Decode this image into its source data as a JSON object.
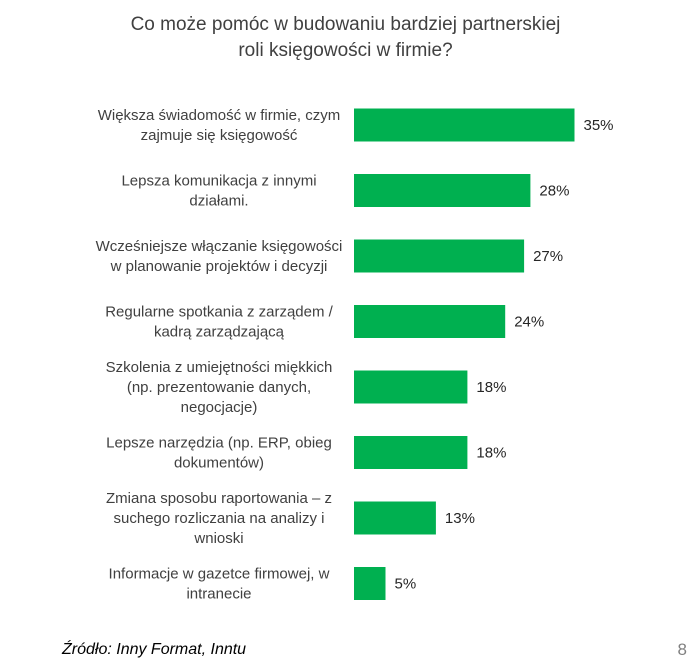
{
  "chart_data": {
    "type": "bar",
    "orientation": "horizontal",
    "title_lines": [
      "Co może pomóc w budowaniu bardziej partnerskiej",
      "roli księgowości w firmie?"
    ],
    "categories": [
      [
        "Większa świadomość w firmie, czym",
        "zajmuje się księgowość"
      ],
      [
        "Lepsza komunikacja z innymi",
        "działami."
      ],
      [
        "Wcześniejsze włączanie księgowości",
        "w planowanie projektów i decyzji"
      ],
      [
        "Regularne spotkania z zarządem /",
        "kadrą zarządzającą"
      ],
      [
        "Szkolenia z umiejętności miękkich",
        "(np. prezentowanie danych,",
        "negocjacje)"
      ],
      [
        "Lepsze narzędzia (np. ERP, obieg",
        "dokumentów)"
      ],
      [
        "Zmiana sposobu raportowania – z",
        "suchego rozliczania na analizy i",
        "wnioski"
      ],
      [
        "Informacje w gazetce firmowej, w",
        "intranecie"
      ]
    ],
    "values": [
      35,
      28,
      27,
      24,
      18,
      18,
      13,
      5
    ],
    "value_labels": [
      "35%",
      "28%",
      "27%",
      "24%",
      "18%",
      "18%",
      "13%",
      "5%"
    ],
    "unit": "%",
    "bar_color": "#00B050",
    "grid": false,
    "legend": "none"
  },
  "footer": {
    "source": "Źródło: Inny Format, Inntu",
    "page_number": "8"
  }
}
